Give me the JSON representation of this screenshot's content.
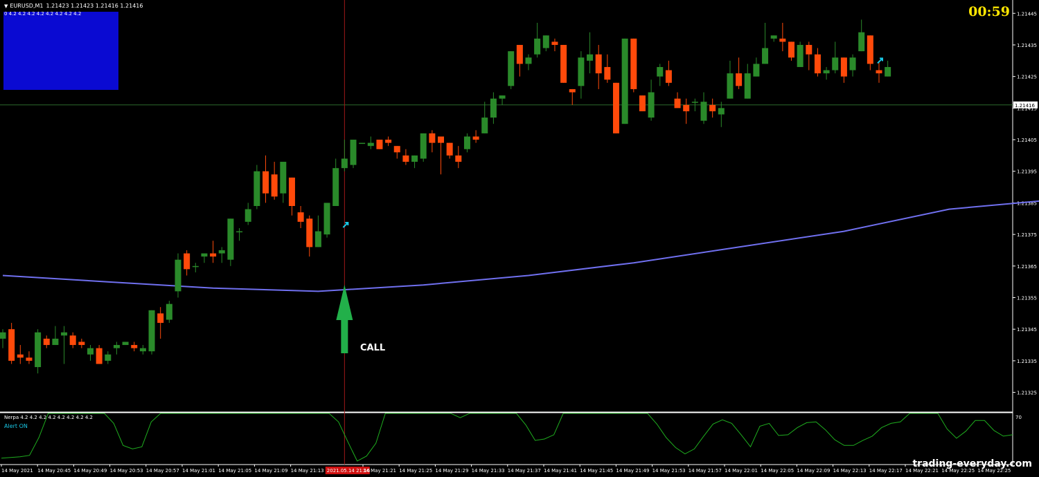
{
  "header": {
    "symbol": "EURUSD,M1",
    "ohlc": "1.21423 1.21423 1.21416 1.21416",
    "indicator_values": "0 4.2 4.2 4.2 4.2 4.2 4.2 4.2 4.2"
  },
  "timer": "00:59",
  "subwindow": {
    "title": "Nerpa 4.2 4.2 4.2 4.2 4.2 4.2 4.2 4.2",
    "alert": "Alert ON",
    "level_label": "70"
  },
  "annotation": {
    "call_label": "CALL"
  },
  "watermark": "trading-everyday.com",
  "colors": {
    "background": "#000000",
    "bull": "#2a8a2a",
    "bear": "#ff4a0a",
    "ma": "#7070f0",
    "oscillator": "#1fae1f",
    "call_arrow": "#22b04a",
    "signal_arrow": "#19c8e6",
    "crosshair": "#a01818",
    "box": "#0a0ad2",
    "timer": "#ffe600"
  },
  "chart_data": [
    {
      "type": "candlestick",
      "symbol": "EURUSD",
      "timeframe": "M1",
      "ylim": [
        1.21319,
        1.21449
      ],
      "y_ticks": [
        "1.21445",
        "1.21435",
        "1.21425",
        "1.21415",
        "1.21405",
        "1.21395",
        "1.21385",
        "1.21375",
        "1.21365",
        "1.21355",
        "1.21345",
        "1.21335",
        "1.21325"
      ],
      "x_ticks": [
        "14 May 2021",
        "14 May 20:45",
        "14 May 20:49",
        "14 May 20:53",
        "14 May 20:57",
        "14 May 21:01",
        "14 May 21:05",
        "14 May 21:09",
        "14 May 21:13",
        "2021.05.14 21:16",
        "14 May 21:21",
        "14 May 21:25",
        "14 May 21:29",
        "14 May 21:33",
        "14 May 21:37",
        "14 May 21:41",
        "14 May 21:45",
        "14 May 21:49",
        "14 May 21:53",
        "14 May 21:57",
        "14 May 22:01",
        "14 May 22:05",
        "14 May 22:09",
        "14 May 22:13",
        "14 May 22:17",
        "14 May 22:21",
        "14 May 22:25",
        "14 May 22:25"
      ],
      "current_price": "1.21416",
      "candles": [
        {
          "o": 1.21342,
          "h": 1.21345,
          "l": 1.21339,
          "c": 1.21344
        },
        {
          "o": 1.21345,
          "h": 1.21347,
          "l": 1.21334,
          "c": 1.21335
        },
        {
          "o": 1.21337,
          "h": 1.2134,
          "l": 1.21334,
          "c": 1.21336
        },
        {
          "o": 1.21336,
          "h": 1.21338,
          "l": 1.21334,
          "c": 1.21335
        },
        {
          "o": 1.21333,
          "h": 1.21345,
          "l": 1.21331,
          "c": 1.21344
        },
        {
          "o": 1.21342,
          "h": 1.21343,
          "l": 1.21339,
          "c": 1.2134
        },
        {
          "o": 1.2134,
          "h": 1.21346,
          "l": 1.2134,
          "c": 1.21342
        },
        {
          "o": 1.21343,
          "h": 1.21346,
          "l": 1.21334,
          "c": 1.21344
        },
        {
          "o": 1.21343,
          "h": 1.21344,
          "l": 1.21339,
          "c": 1.2134
        },
        {
          "o": 1.21341,
          "h": 1.21342,
          "l": 1.21339,
          "c": 1.2134
        },
        {
          "o": 1.21337,
          "h": 1.2134,
          "l": 1.21335,
          "c": 1.21339
        },
        {
          "o": 1.21339,
          "h": 1.2134,
          "l": 1.21334,
          "c": 1.21334
        },
        {
          "o": 1.21335,
          "h": 1.21338,
          "l": 1.21334,
          "c": 1.21337
        },
        {
          "o": 1.21339,
          "h": 1.21341,
          "l": 1.21337,
          "c": 1.2134
        },
        {
          "o": 1.2134,
          "h": 1.21341,
          "l": 1.2134,
          "c": 1.21341
        },
        {
          "o": 1.2134,
          "h": 1.21341,
          "l": 1.21338,
          "c": 1.21339
        },
        {
          "o": 1.21338,
          "h": 1.2134,
          "l": 1.21337,
          "c": 1.21339
        },
        {
          "o": 1.21338,
          "h": 1.21351,
          "l": 1.21337,
          "c": 1.21351
        },
        {
          "o": 1.2135,
          "h": 1.21352,
          "l": 1.21342,
          "c": 1.21347
        },
        {
          "o": 1.21348,
          "h": 1.21354,
          "l": 1.21347,
          "c": 1.21353
        },
        {
          "o": 1.21357,
          "h": 1.21369,
          "l": 1.21355,
          "c": 1.21367
        },
        {
          "o": 1.21369,
          "h": 1.2137,
          "l": 1.21362,
          "c": 1.21364
        },
        {
          "o": 1.21365,
          "h": 1.21366,
          "l": 1.21363,
          "c": 1.21365
        },
        {
          "o": 1.21368,
          "h": 1.21369,
          "l": 1.21366,
          "c": 1.21369
        },
        {
          "o": 1.21369,
          "h": 1.21373,
          "l": 1.21366,
          "c": 1.21368
        },
        {
          "o": 1.21369,
          "h": 1.21371,
          "l": 1.21366,
          "c": 1.2137
        },
        {
          "o": 1.21367,
          "h": 1.2138,
          "l": 1.21365,
          "c": 1.2138
        },
        {
          "o": 1.21376,
          "h": 1.21377,
          "l": 1.21373,
          "c": 1.21376
        },
        {
          "o": 1.21379,
          "h": 1.21385,
          "l": 1.21378,
          "c": 1.21383
        },
        {
          "o": 1.21384,
          "h": 1.21397,
          "l": 1.21383,
          "c": 1.21395
        },
        {
          "o": 1.21395,
          "h": 1.214,
          "l": 1.21385,
          "c": 1.21388
        },
        {
          "o": 1.21394,
          "h": 1.21398,
          "l": 1.21386,
          "c": 1.21387
        },
        {
          "o": 1.21388,
          "h": 1.21398,
          "l": 1.21385,
          "c": 1.21398
        },
        {
          "o": 1.21393,
          "h": 1.21393,
          "l": 1.21381,
          "c": 1.21384
        },
        {
          "o": 1.21382,
          "h": 1.21384,
          "l": 1.21377,
          "c": 1.21379
        },
        {
          "o": 1.2138,
          "h": 1.21381,
          "l": 1.21368,
          "c": 1.21371
        },
        {
          "o": 1.21371,
          "h": 1.21381,
          "l": 1.21371,
          "c": 1.21376
        },
        {
          "o": 1.21375,
          "h": 1.21385,
          "l": 1.21374,
          "c": 1.21385
        },
        {
          "o": 1.21384,
          "h": 1.21399,
          "l": 1.21384,
          "c": 1.21396
        },
        {
          "o": 1.21396,
          "h": 1.21405,
          "l": 1.21395,
          "c": 1.21399
        },
        {
          "o": 1.21397,
          "h": 1.21405,
          "l": 1.21396,
          "c": 1.21405
        },
        {
          "o": 1.21404,
          "h": 1.21404,
          "l": 1.21404,
          "c": 1.21404
        },
        {
          "o": 1.21403,
          "h": 1.21406,
          "l": 1.21402,
          "c": 1.21404
        },
        {
          "o": 1.21405,
          "h": 1.21405,
          "l": 1.21402,
          "c": 1.21402
        },
        {
          "o": 1.21405,
          "h": 1.21406,
          "l": 1.21403,
          "c": 1.21404
        },
        {
          "o": 1.21403,
          "h": 1.21403,
          "l": 1.21399,
          "c": 1.21401
        },
        {
          "o": 1.214,
          "h": 1.21402,
          "l": 1.21397,
          "c": 1.21398
        },
        {
          "o": 1.21398,
          "h": 1.214,
          "l": 1.21396,
          "c": 1.214
        },
        {
          "o": 1.21399,
          "h": 1.21407,
          "l": 1.21398,
          "c": 1.21407
        },
        {
          "o": 1.21407,
          "h": 1.21408,
          "l": 1.21401,
          "c": 1.21404
        },
        {
          "o": 1.21406,
          "h": 1.21406,
          "l": 1.21394,
          "c": 1.21404
        },
        {
          "o": 1.21404,
          "h": 1.21404,
          "l": 1.21399,
          "c": 1.214
        },
        {
          "o": 1.214,
          "h": 1.21403,
          "l": 1.21396,
          "c": 1.21398
        },
        {
          "o": 1.21402,
          "h": 1.21407,
          "l": 1.21401,
          "c": 1.21406
        },
        {
          "o": 1.21406,
          "h": 1.21408,
          "l": 1.21404,
          "c": 1.21405
        },
        {
          "o": 1.21407,
          "h": 1.21417,
          "l": 1.21407,
          "c": 1.21412
        },
        {
          "o": 1.21412,
          "h": 1.2142,
          "l": 1.2141,
          "c": 1.21418
        },
        {
          "o": 1.21418,
          "h": 1.21419,
          "l": 1.21416,
          "c": 1.21419
        },
        {
          "o": 1.21422,
          "h": 1.21433,
          "l": 1.21421,
          "c": 1.21433
        },
        {
          "o": 1.21435,
          "h": 1.21435,
          "l": 1.21425,
          "c": 1.21429
        },
        {
          "o": 1.21429,
          "h": 1.21432,
          "l": 1.21427,
          "c": 1.21431
        },
        {
          "o": 1.21432,
          "h": 1.21442,
          "l": 1.21431,
          "c": 1.21437
        },
        {
          "o": 1.21434,
          "h": 1.21438,
          "l": 1.21433,
          "c": 1.21438
        },
        {
          "o": 1.21436,
          "h": 1.21437,
          "l": 1.21433,
          "c": 1.21435
        },
        {
          "o": 1.21435,
          "h": 1.21435,
          "l": 1.21423,
          "c": 1.21423
        },
        {
          "o": 1.21421,
          "h": 1.21421,
          "l": 1.21416,
          "c": 1.2142
        },
        {
          "o": 1.21422,
          "h": 1.21433,
          "l": 1.21418,
          "c": 1.21431
        },
        {
          "o": 1.2143,
          "h": 1.21439,
          "l": 1.21426,
          "c": 1.21432
        },
        {
          "o": 1.21432,
          "h": 1.21435,
          "l": 1.21421,
          "c": 1.21426
        },
        {
          "o": 1.21428,
          "h": 1.21432,
          "l": 1.21423,
          "c": 1.21424
        },
        {
          "o": 1.21423,
          "h": 1.21423,
          "l": 1.21407,
          "c": 1.21407
        },
        {
          "o": 1.2141,
          "h": 1.21437,
          "l": 1.2141,
          "c": 1.21437
        },
        {
          "o": 1.21437,
          "h": 1.21437,
          "l": 1.2142,
          "c": 1.21421
        },
        {
          "o": 1.21419,
          "h": 1.21419,
          "l": 1.21414,
          "c": 1.21414
        },
        {
          "o": 1.21412,
          "h": 1.21424,
          "l": 1.21411,
          "c": 1.2142
        },
        {
          "o": 1.21425,
          "h": 1.21429,
          "l": 1.21422,
          "c": 1.21428
        },
        {
          "o": 1.21427,
          "h": 1.2143,
          "l": 1.21422,
          "c": 1.21423
        },
        {
          "o": 1.21418,
          "h": 1.2142,
          "l": 1.21416,
          "c": 1.21415
        },
        {
          "o": 1.21416,
          "h": 1.21418,
          "l": 1.2141,
          "c": 1.21414
        },
        {
          "o": 1.21417,
          "h": 1.21418,
          "l": 1.21414,
          "c": 1.21417
        },
        {
          "o": 1.21411,
          "h": 1.2142,
          "l": 1.2141,
          "c": 1.21417
        },
        {
          "o": 1.21416,
          "h": 1.21418,
          "l": 1.21412,
          "c": 1.21414
        },
        {
          "o": 1.21413,
          "h": 1.21417,
          "l": 1.21409,
          "c": 1.21415
        },
        {
          "o": 1.21418,
          "h": 1.2143,
          "l": 1.21418,
          "c": 1.21426
        },
        {
          "o": 1.21426,
          "h": 1.21431,
          "l": 1.21421,
          "c": 1.21422
        },
        {
          "o": 1.21418,
          "h": 1.21429,
          "l": 1.21418,
          "c": 1.21426
        },
        {
          "o": 1.21425,
          "h": 1.21431,
          "l": 1.21425,
          "c": 1.21429
        },
        {
          "o": 1.21429,
          "h": 1.21442,
          "l": 1.21429,
          "c": 1.21434
        },
        {
          "o": 1.21437,
          "h": 1.21438,
          "l": 1.21436,
          "c": 1.21438
        },
        {
          "o": 1.21437,
          "h": 1.21442,
          "l": 1.21433,
          "c": 1.21436
        },
        {
          "o": 1.21436,
          "h": 1.21436,
          "l": 1.2143,
          "c": 1.21431
        },
        {
          "o": 1.21428,
          "h": 1.21436,
          "l": 1.21428,
          "c": 1.21435
        },
        {
          "o": 1.21435,
          "h": 1.21436,
          "l": 1.21427,
          "c": 1.21432
        },
        {
          "o": 1.21432,
          "h": 1.21434,
          "l": 1.21425,
          "c": 1.21426
        },
        {
          "o": 1.21426,
          "h": 1.21428,
          "l": 1.21424,
          "c": 1.21427
        },
        {
          "o": 1.21427,
          "h": 1.21436,
          "l": 1.21426,
          "c": 1.21431
        },
        {
          "o": 1.21431,
          "h": 1.21431,
          "l": 1.21423,
          "c": 1.21425
        },
        {
          "o": 1.21427,
          "h": 1.21432,
          "l": 1.21425,
          "c": 1.21431
        },
        {
          "o": 1.21433,
          "h": 1.21443,
          "l": 1.21433,
          "c": 1.21439
        },
        {
          "o": 1.21438,
          "h": 1.21438,
          "l": 1.21427,
          "c": 1.21429
        },
        {
          "o": 1.21427,
          "h": 1.2143,
          "l": 1.21423,
          "c": 1.21426
        },
        {
          "o": 1.21425,
          "h": 1.2143,
          "l": 1.21425,
          "c": 1.21428
        }
      ],
      "moving_average": [
        [
          0,
          1.21362
        ],
        [
          12,
          1.2136
        ],
        [
          24,
          1.21358
        ],
        [
          36,
          1.21357
        ],
        [
          48,
          1.21359
        ],
        [
          60,
          1.21362
        ],
        [
          72,
          1.21366
        ],
        [
          84,
          1.21371
        ],
        [
          96,
          1.21376
        ],
        [
          108,
          1.21383
        ],
        [
          120,
          1.21386
        ],
        [
          132,
          1.2139
        ],
        [
          144,
          1.21392
        ],
        [
          156,
          1.21395
        ],
        [
          168,
          1.21397
        ],
        [
          180,
          1.21399
        ]
      ],
      "crosshair_time": "2021.05.14 21:16"
    },
    {
      "type": "line",
      "name": "Nerpa 4.2 4.2 4.2 4.2 4.2 4.2 4.2 4.2",
      "ylim": [
        0,
        70
      ],
      "y_ticks": [
        "70"
      ],
      "values": [
        7,
        8,
        9,
        11,
        36,
        70,
        70,
        70,
        70,
        70,
        70,
        70,
        56,
        25,
        20,
        23,
        58,
        70,
        70,
        70,
        70,
        70,
        70,
        70,
        70,
        70,
        70,
        70,
        70,
        70,
        70,
        70,
        70,
        70,
        70,
        70,
        58,
        30,
        3,
        10,
        28,
        70,
        70,
        70,
        70,
        70,
        70,
        70,
        70,
        64,
        70,
        70,
        70,
        70,
        70,
        70,
        54,
        32,
        34,
        40,
        70,
        70,
        70,
        70,
        70,
        70,
        70,
        70,
        70,
        70,
        55,
        36,
        22,
        13,
        20,
        38,
        55,
        61,
        56,
        40,
        23,
        52,
        56,
        39,
        40,
        50,
        57,
        58,
        47,
        33,
        25,
        25,
        32,
        38,
        50,
        56,
        58,
        70,
        70,
        70,
        70,
        48,
        35,
        45,
        60,
        60,
        46,
        38,
        40
      ]
    }
  ]
}
